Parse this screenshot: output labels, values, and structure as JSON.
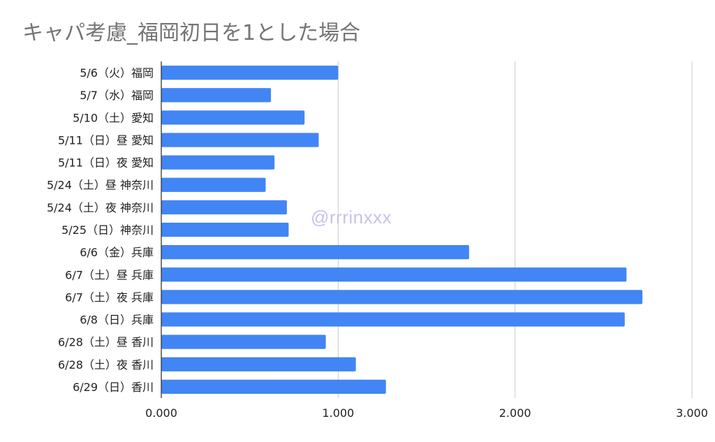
{
  "watermark": "@rrrinxxx",
  "chart_data": {
    "type": "bar",
    "orientation": "horizontal",
    "title": "キャパ考慮_福岡初日を1とした場合",
    "xlabel": "",
    "ylabel": "",
    "xlim": [
      0,
      3
    ],
    "x_ticks": [
      "0.000",
      "1.000",
      "2.000",
      "3.000"
    ],
    "grid": true,
    "categories": [
      "5/6（火）福岡",
      "5/7（水）福岡",
      "5/10（土）愛知",
      "5/11（日）昼 愛知",
      "5/11（日）夜 愛知",
      "5/24（土）昼 神奈川",
      "5/24（土）夜 神奈川",
      "5/25（日）神奈川",
      "6/6（金）兵庫",
      "6/7（土）昼 兵庫",
      "6/7（土）夜 兵庫",
      "6/8（日）兵庫",
      "6/28（土）昼 香川",
      "6/28（土）夜 香川",
      "6/29（日）香川"
    ],
    "values": [
      1.0,
      0.62,
      0.81,
      0.89,
      0.64,
      0.59,
      0.71,
      0.72,
      1.74,
      2.63,
      2.72,
      2.62,
      0.93,
      1.1,
      1.27
    ],
    "bar_color": "#4285f4"
  }
}
